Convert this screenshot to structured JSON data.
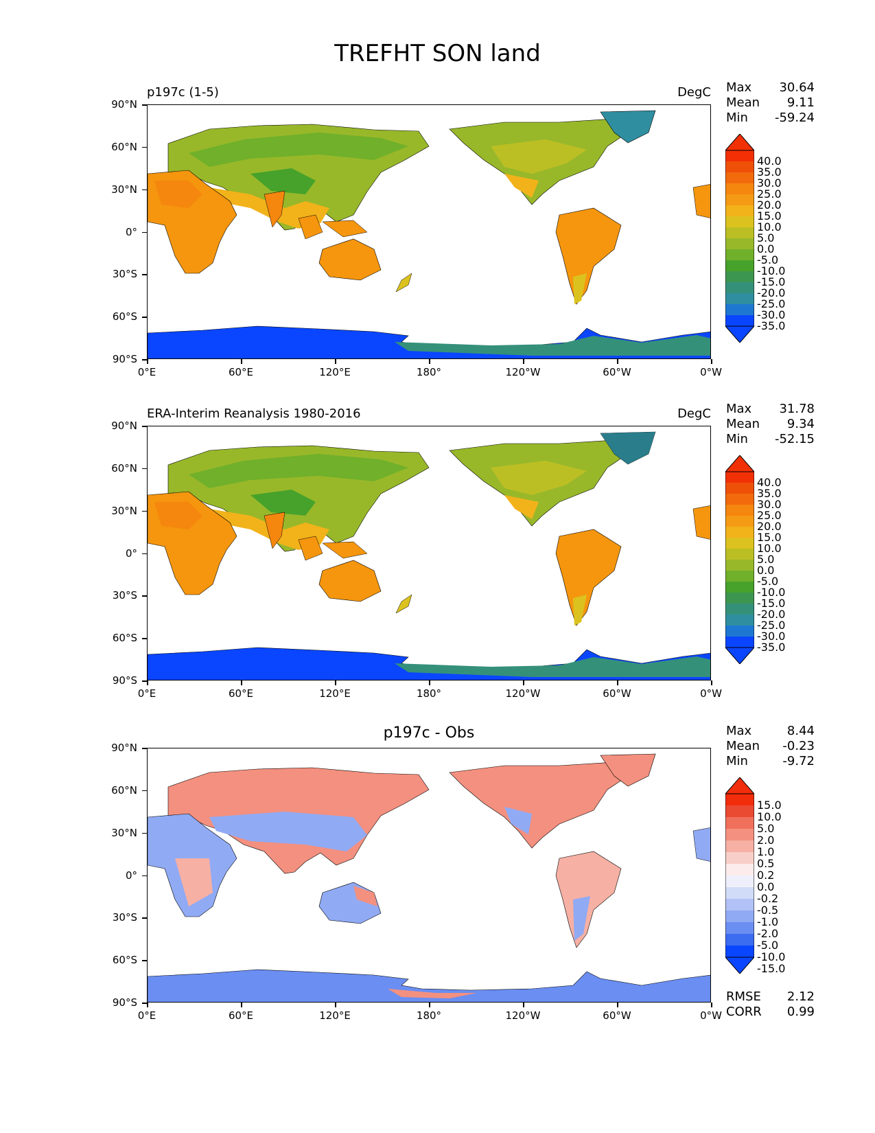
{
  "title": "TREFHT SON land",
  "colors": {
    "temp_scale": [
      "#0a46ff",
      "#1e78d2",
      "#2f8fa0",
      "#35907a",
      "#3d9650",
      "#46a22a",
      "#70b02a",
      "#98b82a",
      "#bcbf24",
      "#dcc21e",
      "#f2b21a",
      "#f59a14",
      "#f5860e",
      "#f26a0c",
      "#ef5008",
      "#f23006"
    ],
    "diff_scale": [
      "#0a46ff",
      "#3c6cf0",
      "#6a8ef2",
      "#90aaf4",
      "#b2c2f6",
      "#d0dcf8",
      "#eeeffa",
      "#fbeceb",
      "#f8cfc8",
      "#f6b0a4",
      "#f4907f",
      "#f0705c",
      "#ea4a32",
      "#f22d0c"
    ],
    "ocean": "#ffffff",
    "coast": "#000000"
  },
  "axes": {
    "y_ticks": [
      "90°N",
      "60°N",
      "30°N",
      "0°",
      "30°S",
      "60°S",
      "90°S"
    ],
    "x_ticks": [
      "0°E",
      "60°E",
      "120°E",
      "180°",
      "120°W",
      "60°W",
      "0°W"
    ]
  },
  "panels": [
    {
      "left_title": "p197c (1-5)",
      "center_title": "",
      "units": "DegC",
      "stats": [
        {
          "name": "Max",
          "value": "30.64"
        },
        {
          "name": "Mean",
          "value": "9.11"
        },
        {
          "name": "Min",
          "value": "-59.24"
        }
      ],
      "colorbar_labels": [
        "40.0",
        "35.0",
        "30.0",
        "25.0",
        "20.0",
        "15.0",
        "10.0",
        "5.0",
        "0.0",
        "-5.0",
        "-10.0",
        "-15.0",
        "-20.0",
        "-25.0",
        "-30.0",
        "-35.0"
      ],
      "kind": "temp"
    },
    {
      "left_title": "ERA-Interim Reanalysis 1980-2016",
      "center_title": "",
      "units": "DegC",
      "stats": [
        {
          "name": "Max",
          "value": "31.78"
        },
        {
          "name": "Mean",
          "value": "9.34"
        },
        {
          "name": "Min",
          "value": "-52.15"
        }
      ],
      "colorbar_labels": [
        "40.0",
        "35.0",
        "30.0",
        "25.0",
        "20.0",
        "15.0",
        "10.0",
        "5.0",
        "0.0",
        "-5.0",
        "-10.0",
        "-15.0",
        "-20.0",
        "-25.0",
        "-30.0",
        "-35.0"
      ],
      "kind": "temp"
    },
    {
      "left_title": "",
      "center_title": "p197c - Obs",
      "units": "",
      "stats": [
        {
          "name": "Max",
          "value": "8.44"
        },
        {
          "name": "Mean",
          "value": "-0.23"
        },
        {
          "name": "Min",
          "value": "-9.72"
        }
      ],
      "colorbar_labels": [
        "15.0",
        "10.0",
        "5.0",
        "2.0",
        "1.0",
        "0.5",
        "0.2",
        "0.0",
        "-0.2",
        "-0.5",
        "-1.0",
        "-2.0",
        "-5.0",
        "-10.0",
        "-15.0"
      ],
      "kind": "diff",
      "extra_stats": [
        {
          "name": "RMSE",
          "value": "2.12"
        },
        {
          "name": "CORR",
          "value": "0.99"
        }
      ]
    }
  ]
}
